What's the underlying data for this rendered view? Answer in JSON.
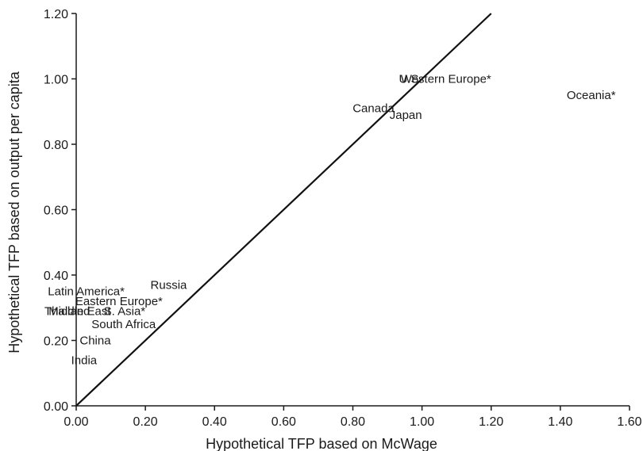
{
  "chart_data": {
    "type": "scatter",
    "xlabel": "Hypothetical TFP based on McWage",
    "ylabel": "Hypothetical TFP based on output per capita",
    "xlim": [
      0,
      1.6
    ],
    "ylim": [
      0,
      1.2
    ],
    "x_ticks": [
      "0.00",
      "0.20",
      "0.40",
      "0.60",
      "0.80",
      "1.00",
      "1.20",
      "1.40",
      "1.60"
    ],
    "y_ticks": [
      "0.00",
      "0.20",
      "0.40",
      "0.60",
      "0.80",
      "1.00",
      "1.20"
    ],
    "reference_line": {
      "type": "45-degree",
      "from": [
        0,
        0
      ],
      "to": [
        1.2,
        1.2
      ]
    },
    "grid": false,
    "points": [
      {
        "label": "U.S.",
        "x": 1.0,
        "y": 1.0
      },
      {
        "label": "Western Europe*",
        "x": 1.2,
        "y": 1.0
      },
      {
        "label": "Oceania*",
        "x": 1.56,
        "y": 0.95
      },
      {
        "label": "Canada",
        "x": 0.92,
        "y": 0.91
      },
      {
        "label": "Japan",
        "x": 1.0,
        "y": 0.89
      },
      {
        "label": "Russia",
        "x": 0.32,
        "y": 0.37
      },
      {
        "label": "Latin America*",
        "x": 0.14,
        "y": 0.35
      },
      {
        "label": "Eastern Europe*",
        "x": 0.25,
        "y": 0.32
      },
      {
        "label": "Middle East",
        "x": 0.1,
        "y": 0.29
      },
      {
        "label": "Thailand",
        "x": 0.04,
        "y": 0.29
      },
      {
        "label": "S. Asia*",
        "x": 0.2,
        "y": 0.29
      },
      {
        "label": "South Africa",
        "x": 0.23,
        "y": 0.25
      },
      {
        "label": "China",
        "x": 0.1,
        "y": 0.2
      },
      {
        "label": "India",
        "x": 0.06,
        "y": 0.14
      }
    ]
  }
}
